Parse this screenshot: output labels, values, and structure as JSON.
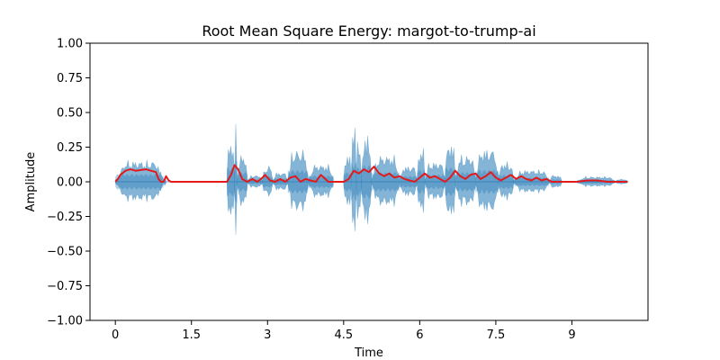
{
  "chart_data": {
    "type": "area",
    "title": "Root Mean Square Energy: margot-to-trump-ai",
    "xlabel": "Time",
    "ylabel": "Amplitude",
    "xlim": [
      -0.5,
      10.5
    ],
    "ylim": [
      -1.0,
      1.0
    ],
    "xticks": [
      0,
      1.5,
      3,
      4.5,
      6,
      7.5,
      9
    ],
    "xtick_labels": [
      "0",
      "1.5",
      "3",
      "4.5",
      "6",
      "7.5",
      "9"
    ],
    "yticks": [
      -1.0,
      -0.75,
      -0.5,
      -0.25,
      0.0,
      0.25,
      0.5,
      0.75,
      1.0
    ],
    "ytick_labels": [
      "−1.00",
      "−0.75",
      "−0.50",
      "−0.25",
      "0.00",
      "0.25",
      "0.50",
      "0.75",
      "1.00"
    ],
    "grid": false,
    "series": [
      {
        "kind": "waveform-envelope",
        "color": "#1f77b4",
        "opacity": 0.55,
        "segments": [
          {
            "t0": 0.0,
            "t1": 0.95,
            "amp": 0.16
          },
          {
            "t0": 0.95,
            "t1": 1.0,
            "amp": 0.05
          },
          {
            "t0": 2.2,
            "t1": 2.35,
            "amp": 0.3
          },
          {
            "t0": 2.35,
            "t1": 2.4,
            "amp": 0.44
          },
          {
            "t0": 2.4,
            "t1": 2.6,
            "amp": 0.2
          },
          {
            "t0": 2.6,
            "t1": 2.9,
            "amp": 0.05
          },
          {
            "t0": 2.9,
            "t1": 3.1,
            "amp": 0.12
          },
          {
            "t0": 3.1,
            "t1": 3.4,
            "amp": 0.07
          },
          {
            "t0": 3.4,
            "t1": 3.8,
            "amp": 0.24
          },
          {
            "t0": 3.8,
            "t1": 4.3,
            "amp": 0.13
          },
          {
            "t0": 4.5,
            "t1": 4.65,
            "amp": 0.2
          },
          {
            "t0": 4.65,
            "t1": 4.75,
            "amp": 0.4
          },
          {
            "t0": 4.75,
            "t1": 4.85,
            "amp": 0.3
          },
          {
            "t0": 4.85,
            "t1": 5.05,
            "amp": 0.35
          },
          {
            "t0": 5.05,
            "t1": 5.6,
            "amp": 0.2
          },
          {
            "t0": 5.6,
            "t1": 5.95,
            "amp": 0.12
          },
          {
            "t0": 5.95,
            "t1": 6.1,
            "amp": 0.25
          },
          {
            "t0": 6.1,
            "t1": 6.5,
            "amp": 0.15
          },
          {
            "t0": 6.5,
            "t1": 6.7,
            "amp": 0.3
          },
          {
            "t0": 6.7,
            "t1": 7.1,
            "amp": 0.2
          },
          {
            "t0": 7.1,
            "t1": 7.55,
            "amp": 0.25
          },
          {
            "t0": 7.55,
            "t1": 7.85,
            "amp": 0.15
          },
          {
            "t0": 7.85,
            "t1": 8.55,
            "amp": 0.09
          },
          {
            "t0": 8.55,
            "t1": 8.8,
            "amp": 0.05
          },
          {
            "t0": 9.1,
            "t1": 9.85,
            "amp": 0.04
          },
          {
            "t0": 9.85,
            "t1": 10.1,
            "amp": 0.02
          }
        ]
      },
      {
        "kind": "rms-line",
        "color": "#e31a1c",
        "x": [
          0.0,
          0.05,
          0.1,
          0.2,
          0.3,
          0.4,
          0.5,
          0.6,
          0.7,
          0.8,
          0.85,
          0.9,
          0.95,
          1.0,
          1.05,
          1.1,
          1.25,
          2.0,
          2.1,
          2.2,
          2.28,
          2.35,
          2.42,
          2.5,
          2.6,
          2.7,
          2.8,
          2.9,
          2.95,
          3.05,
          3.15,
          3.25,
          3.35,
          3.45,
          3.55,
          3.65,
          3.75,
          3.85,
          3.95,
          4.05,
          4.2,
          4.5,
          4.6,
          4.7,
          4.8,
          4.9,
          5.0,
          5.1,
          5.2,
          5.3,
          5.4,
          5.5,
          5.6,
          5.7,
          5.8,
          5.9,
          6.0,
          6.1,
          6.2,
          6.3,
          6.4,
          6.5,
          6.6,
          6.7,
          6.8,
          6.9,
          7.0,
          7.1,
          7.2,
          7.3,
          7.4,
          7.5,
          7.6,
          7.7,
          7.8,
          7.9,
          8.0,
          8.1,
          8.2,
          8.3,
          8.4,
          8.5,
          8.6,
          8.8,
          9.1,
          9.3,
          9.5,
          9.7,
          9.9,
          10.1
        ],
        "y": [
          0.0,
          0.02,
          0.05,
          0.08,
          0.09,
          0.08,
          0.085,
          0.09,
          0.08,
          0.07,
          0.02,
          0.0,
          0.0,
          0.04,
          0.01,
          0.0,
          0.0,
          0.0,
          0.0,
          0.0,
          0.05,
          0.12,
          0.09,
          0.02,
          0.0,
          0.02,
          0.0,
          0.03,
          0.05,
          0.01,
          0.0,
          0.02,
          0.0,
          0.03,
          0.04,
          0.0,
          0.02,
          0.01,
          0.0,
          0.05,
          0.0,
          0.0,
          0.02,
          0.08,
          0.06,
          0.09,
          0.07,
          0.11,
          0.06,
          0.04,
          0.06,
          0.03,
          0.04,
          0.02,
          0.01,
          0.0,
          0.03,
          0.06,
          0.03,
          0.04,
          0.02,
          0.0,
          0.03,
          0.08,
          0.04,
          0.02,
          0.05,
          0.06,
          0.02,
          0.04,
          0.07,
          0.03,
          0.01,
          0.03,
          0.05,
          0.02,
          0.04,
          0.02,
          0.01,
          0.03,
          0.01,
          0.02,
          0.0,
          0.0,
          0.0,
          0.01,
          0.01,
          0.0,
          0.0,
          0.0
        ]
      }
    ]
  }
}
